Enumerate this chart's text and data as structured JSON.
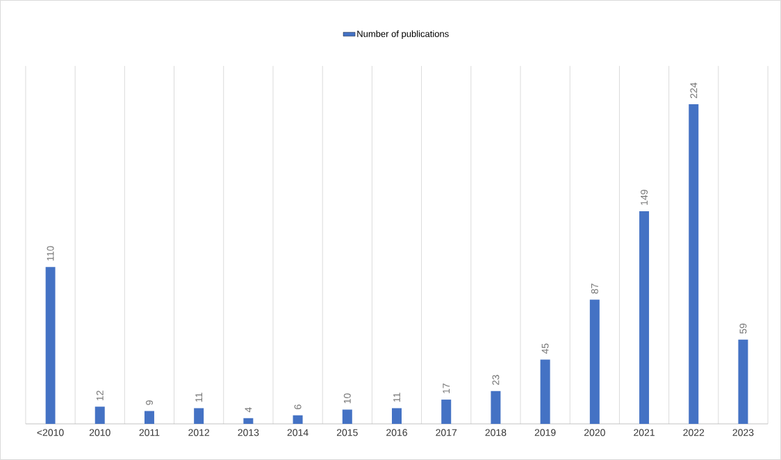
{
  "chart_data": {
    "type": "bar",
    "categories": [
      "<2010",
      "2010",
      "2011",
      "2012",
      "2013",
      "2014",
      "2015",
      "2016",
      "2017",
      "2018",
      "2019",
      "2020",
      "2021",
      "2022",
      "2023"
    ],
    "series": [
      {
        "name": "Number of publications",
        "color": "#4472c4",
        "values": [
          110,
          12,
          9,
          11,
          4,
          6,
          10,
          11,
          17,
          23,
          45,
          87,
          149,
          224,
          59
        ]
      }
    ],
    "data_labels": true,
    "grid": "x",
    "legend": "top"
  }
}
